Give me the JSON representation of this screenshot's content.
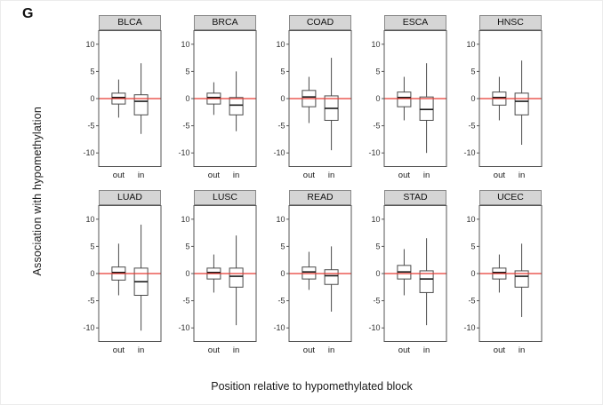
{
  "figure": {
    "panel_label": "G",
    "ylabel": "Association with hypomethylation",
    "xlabel": "Position relative to hypomethylated block"
  },
  "chart_data": {
    "type": "boxplot",
    "layout": {
      "rows": 2,
      "cols": 5
    },
    "categories": [
      "out",
      "in"
    ],
    "yticks": [
      10,
      5,
      0,
      -5,
      -10
    ],
    "ylim": [
      -12.5,
      12.5
    ],
    "reference_line": {
      "y": 0,
      "color": "#e73b33"
    },
    "colors": {
      "box_stroke": "#4a4a4a",
      "box_fill": "#ffffff",
      "median": "#1a1a1a",
      "panel_border": "#555555",
      "title_bg": "#d5d5d5"
    },
    "panels": [
      {
        "title": "BLCA",
        "boxes": [
          {
            "category": "out",
            "whisker_low": -3.5,
            "q1": -1.0,
            "median": 0.2,
            "q3": 1.0,
            "whisker_high": 3.5
          },
          {
            "category": "in",
            "whisker_low": -6.5,
            "q1": -3.0,
            "median": -0.5,
            "q3": 0.7,
            "whisker_high": 6.5
          }
        ]
      },
      {
        "title": "BRCA",
        "boxes": [
          {
            "category": "out",
            "whisker_low": -3.0,
            "q1": -1.0,
            "median": 0.2,
            "q3": 1.0,
            "whisker_high": 3.0
          },
          {
            "category": "in",
            "whisker_low": -6.0,
            "q1": -3.0,
            "median": -1.2,
            "q3": 0.2,
            "whisker_high": 5.0
          }
        ]
      },
      {
        "title": "COAD",
        "boxes": [
          {
            "category": "out",
            "whisker_low": -4.5,
            "q1": -1.5,
            "median": 0.3,
            "q3": 1.5,
            "whisker_high": 4.0
          },
          {
            "category": "in",
            "whisker_low": -9.5,
            "q1": -4.0,
            "median": -1.8,
            "q3": 0.5,
            "whisker_high": 7.5
          }
        ]
      },
      {
        "title": "ESCA",
        "boxes": [
          {
            "category": "out",
            "whisker_low": -4.0,
            "q1": -1.5,
            "median": 0.2,
            "q3": 1.2,
            "whisker_high": 4.0
          },
          {
            "category": "in",
            "whisker_low": -10.0,
            "q1": -4.0,
            "median": -2.0,
            "q3": 0.3,
            "whisker_high": 6.5
          }
        ]
      },
      {
        "title": "HNSC",
        "boxes": [
          {
            "category": "out",
            "whisker_low": -4.0,
            "q1": -1.2,
            "median": 0.2,
            "q3": 1.2,
            "whisker_high": 4.0
          },
          {
            "category": "in",
            "whisker_low": -8.5,
            "q1": -3.0,
            "median": -0.5,
            "q3": 1.0,
            "whisker_high": 7.0
          }
        ]
      },
      {
        "title": "LUAD",
        "boxes": [
          {
            "category": "out",
            "whisker_low": -4.0,
            "q1": -1.2,
            "median": 0.2,
            "q3": 1.2,
            "whisker_high": 5.5
          },
          {
            "category": "in",
            "whisker_low": -10.5,
            "q1": -4.0,
            "median": -1.5,
            "q3": 1.0,
            "whisker_high": 9.0
          }
        ]
      },
      {
        "title": "LUSC",
        "boxes": [
          {
            "category": "out",
            "whisker_low": -3.5,
            "q1": -1.0,
            "median": 0.2,
            "q3": 1.0,
            "whisker_high": 3.5
          },
          {
            "category": "in",
            "whisker_low": -9.5,
            "q1": -2.5,
            "median": -0.5,
            "q3": 1.0,
            "whisker_high": 7.0
          }
        ]
      },
      {
        "title": "READ",
        "boxes": [
          {
            "category": "out",
            "whisker_low": -3.0,
            "q1": -1.0,
            "median": 0.3,
            "q3": 1.2,
            "whisker_high": 4.0
          },
          {
            "category": "in",
            "whisker_low": -7.0,
            "q1": -2.0,
            "median": -0.4,
            "q3": 0.7,
            "whisker_high": 5.0
          }
        ]
      },
      {
        "title": "STAD",
        "boxes": [
          {
            "category": "out",
            "whisker_low": -4.0,
            "q1": -1.0,
            "median": 0.3,
            "q3": 1.5,
            "whisker_high": 4.5
          },
          {
            "category": "in",
            "whisker_low": -9.5,
            "q1": -3.5,
            "median": -1.0,
            "q3": 0.5,
            "whisker_high": 6.5
          }
        ]
      },
      {
        "title": "UCEC",
        "boxes": [
          {
            "category": "out",
            "whisker_low": -3.5,
            "q1": -1.0,
            "median": 0.2,
            "q3": 1.0,
            "whisker_high": 3.5
          },
          {
            "category": "in",
            "whisker_low": -8.0,
            "q1": -2.5,
            "median": -0.5,
            "q3": 0.5,
            "whisker_high": 5.5
          }
        ]
      }
    ]
  }
}
